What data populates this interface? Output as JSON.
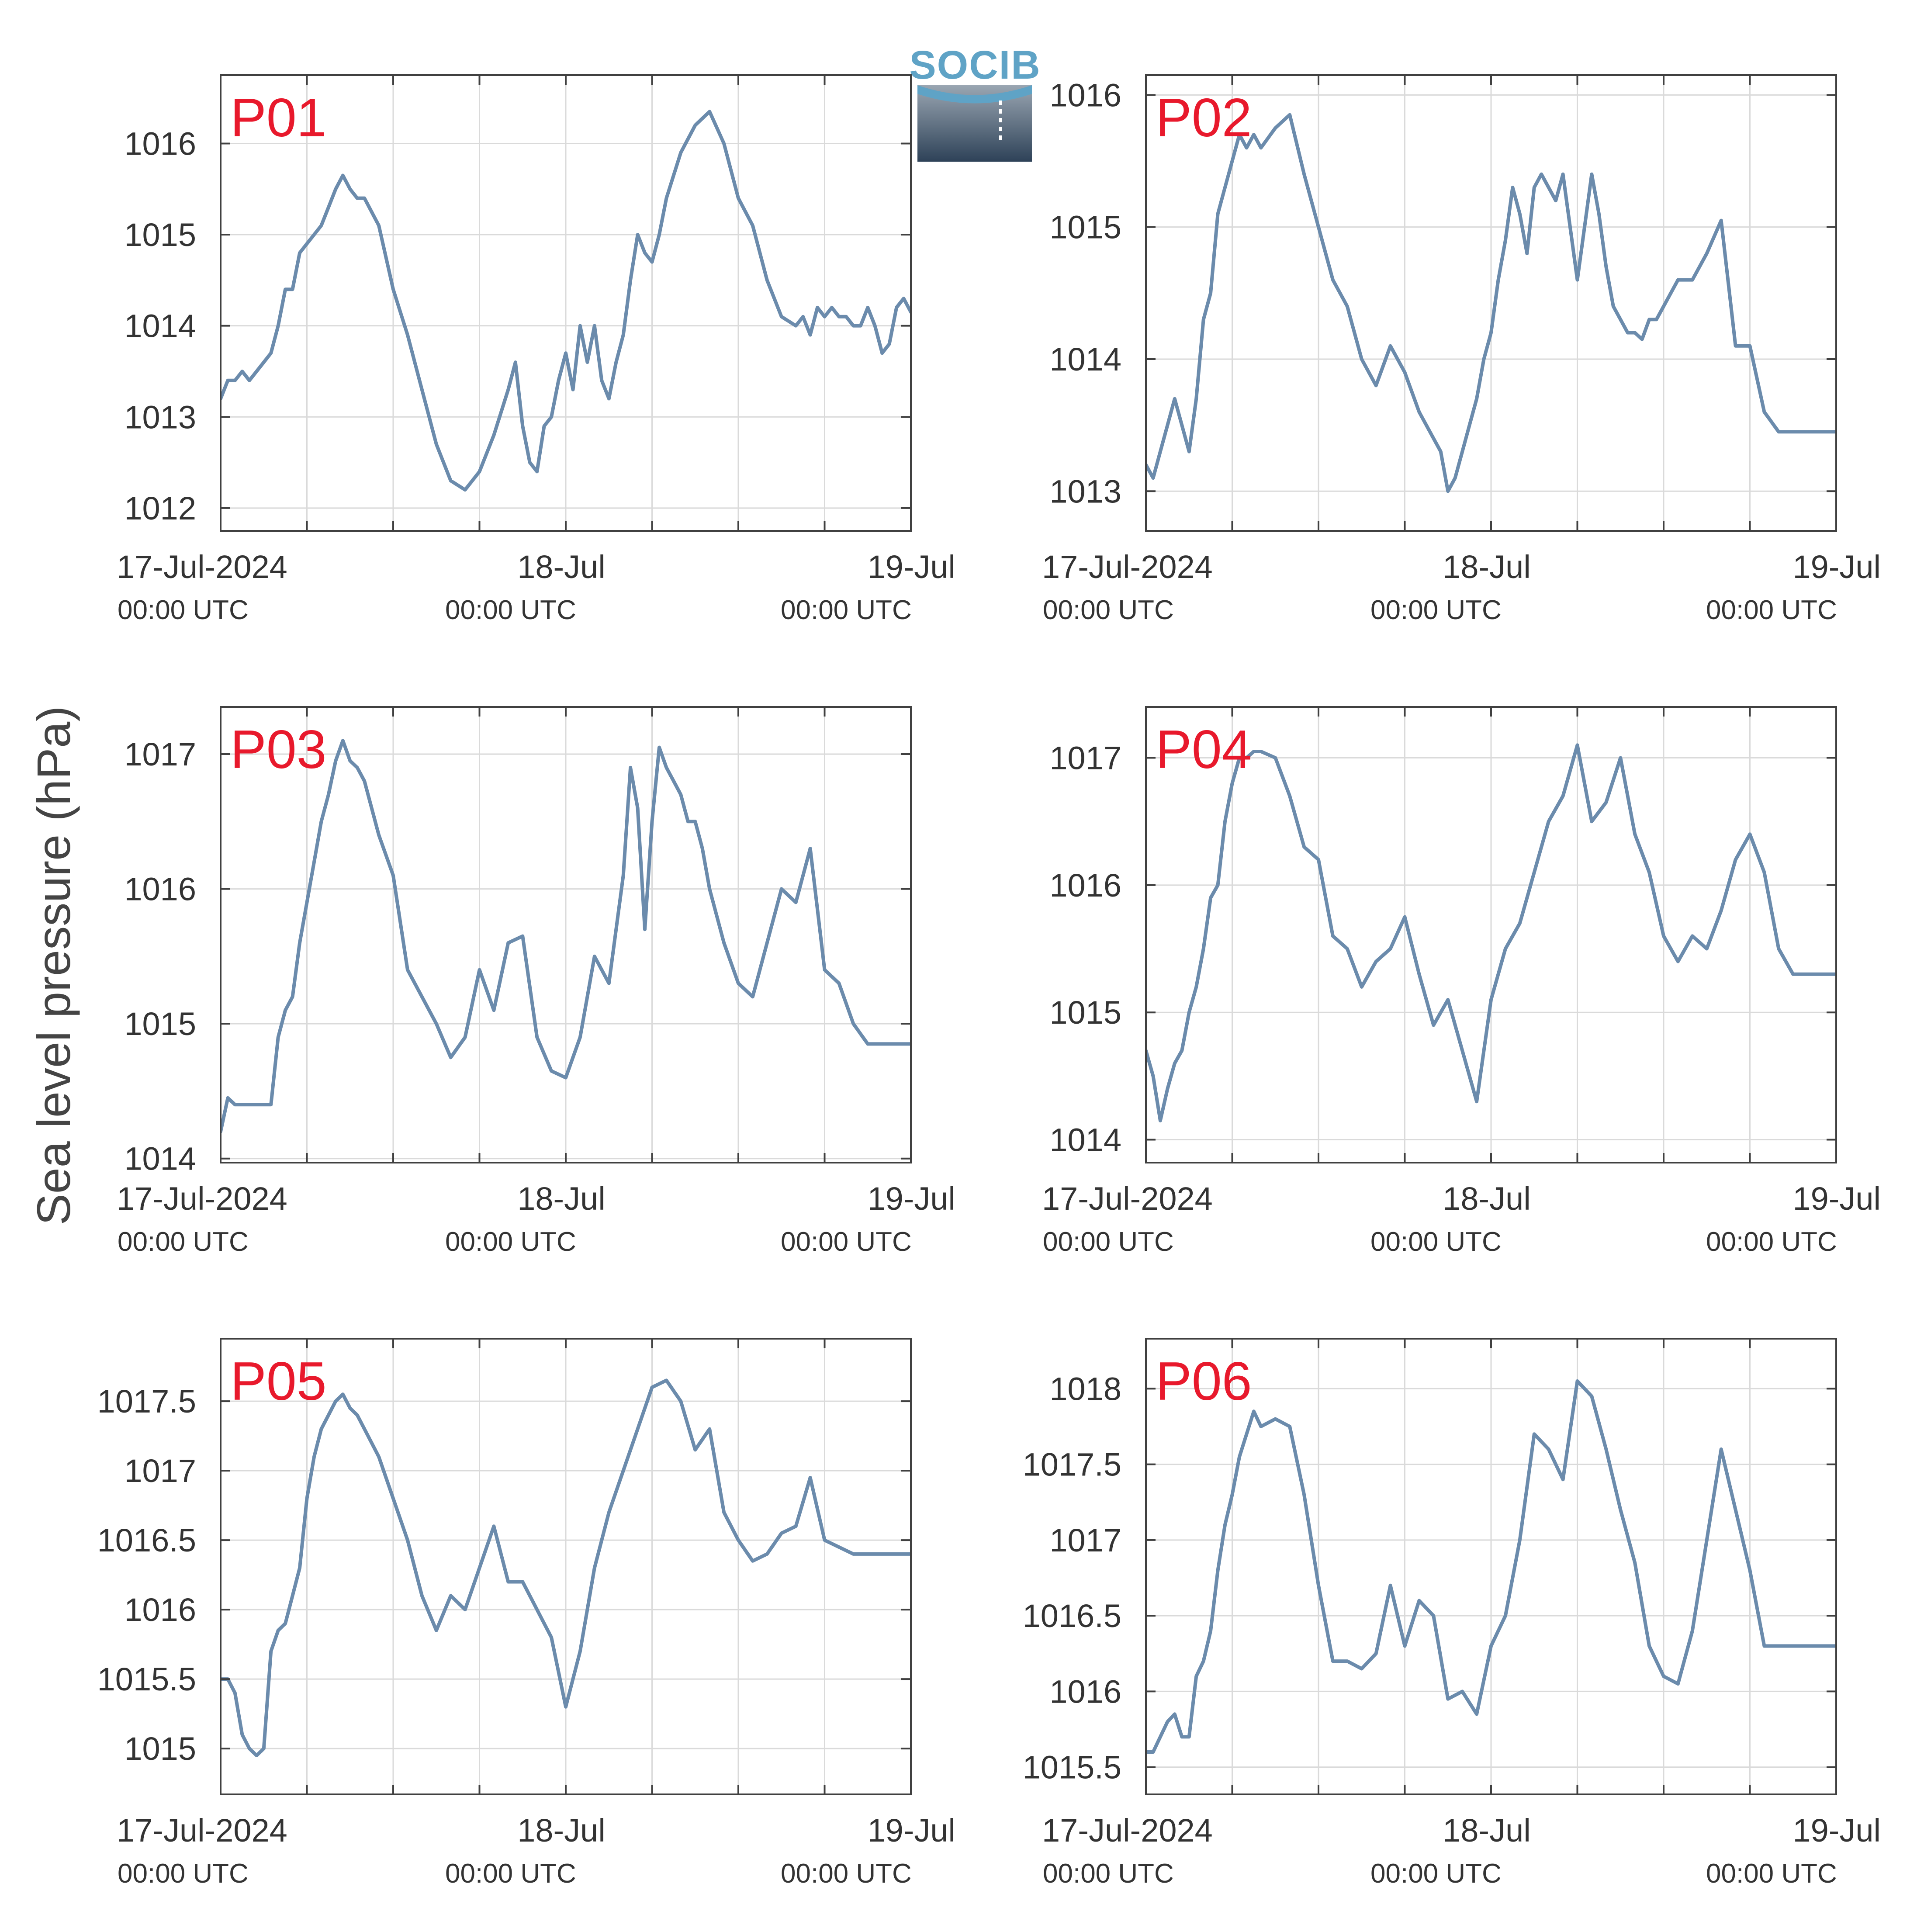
{
  "figure": {
    "ylabel": "Sea level pressure (hPa)",
    "logo_text": "SOCIB"
  },
  "style": {
    "line_color": "#6b8bac",
    "panel_label_color": "#e8192c",
    "grid_color": "#dadada",
    "axis_color": "#404040",
    "text_color": "#333333",
    "logo_top_color": "#5fa3c6",
    "logo_bottom_color": "#2e4258"
  },
  "x_axis": {
    "range_hours": [
      0,
      48
    ],
    "major_ticks": [
      {
        "hour": 0,
        "date": "17-Jul-2024",
        "time": "00:00 UTC"
      },
      {
        "hour": 24,
        "date": "18-Jul",
        "time": "00:00 UTC"
      },
      {
        "hour": 48,
        "date": "19-Jul",
        "time": "00:00 UTC"
      }
    ],
    "minor_tick_step_hours": 6
  },
  "chart_data": [
    {
      "type": "line",
      "label": "P01",
      "ylim": [
        1011.75,
        1016.75
      ],
      "yticks": [
        1012,
        1013,
        1014,
        1015,
        1016
      ],
      "ytick_labels": [
        "1012",
        "1013",
        "1014",
        "1015",
        "1016"
      ],
      "x": [
        0,
        0.5,
        1,
        1.5,
        2,
        2.5,
        3,
        3.5,
        4,
        4.5,
        5,
        5.5,
        6,
        6.5,
        7,
        7.5,
        8,
        8.5,
        9,
        9.5,
        10,
        11,
        12,
        13,
        14,
        15,
        16,
        17,
        18,
        19,
        20,
        20.5,
        21,
        21.5,
        22,
        22.5,
        23,
        23.5,
        24,
        24.5,
        25,
        25.5,
        26,
        26.5,
        27,
        27.5,
        28,
        28.5,
        29,
        29.5,
        30,
        30.5,
        31,
        32,
        33,
        34,
        35,
        36,
        37,
        38,
        39,
        40,
        40.5,
        41,
        41.5,
        42,
        42.5,
        43,
        43.5,
        44,
        44.5,
        45,
        45.5,
        46,
        46.5,
        47,
        47.5,
        48
      ],
      "y": [
        1013.2,
        1013.4,
        1013.4,
        1013.5,
        1013.4,
        1013.5,
        1013.6,
        1013.7,
        1014.0,
        1014.4,
        1014.4,
        1014.8,
        1014.9,
        1015.0,
        1015.1,
        1015.3,
        1015.5,
        1015.65,
        1015.5,
        1015.4,
        1015.4,
        1015.1,
        1014.4,
        1013.9,
        1013.3,
        1012.7,
        1012.3,
        1012.2,
        1012.4,
        1012.8,
        1013.3,
        1013.6,
        1012.9,
        1012.5,
        1012.4,
        1012.9,
        1013.0,
        1013.4,
        1013.7,
        1013.3,
        1014.0,
        1013.6,
        1014.0,
        1013.4,
        1013.2,
        1013.6,
        1013.9,
        1014.5,
        1015.0,
        1014.8,
        1014.7,
        1015.0,
        1015.4,
        1015.9,
        1016.2,
        1016.35,
        1016.0,
        1015.4,
        1015.1,
        1014.5,
        1014.1,
        1014.0,
        1014.1,
        1013.9,
        1014.2,
        1014.1,
        1014.2,
        1014.1,
        1014.1,
        1014.0,
        1014.0,
        1014.2,
        1014.0,
        1013.7,
        1013.8,
        1014.2,
        1014.3,
        1014.15
      ]
    },
    {
      "type": "line",
      "label": "P02",
      "ylim": [
        1012.7,
        1016.15
      ],
      "yticks": [
        1013,
        1014,
        1015,
        1016
      ],
      "ytick_labels": [
        "1013",
        "1014",
        "1015",
        "1016"
      ],
      "x": [
        0,
        0.5,
        1,
        1.5,
        2,
        2.5,
        3,
        3.5,
        4,
        4.5,
        5,
        5.5,
        6,
        6.5,
        7,
        7.5,
        8,
        9,
        10,
        11,
        12,
        13,
        14,
        15,
        16,
        17,
        18,
        19,
        20,
        20.5,
        21,
        21.5,
        22,
        22.5,
        23,
        23.5,
        24,
        24.5,
        25,
        25.5,
        26,
        26.5,
        27,
        27.5,
        28,
        28.5,
        29,
        29.5,
        30,
        30.5,
        31,
        31.5,
        32,
        32.5,
        33,
        33.5,
        34,
        34.5,
        35,
        35.5,
        36,
        37,
        38,
        39,
        40,
        41,
        42,
        43,
        44,
        45,
        45.5,
        46,
        46.5,
        47,
        47.5,
        48
      ],
      "y": [
        1013.2,
        1013.1,
        1013.3,
        1013.5,
        1013.7,
        1013.5,
        1013.3,
        1013.7,
        1014.3,
        1014.5,
        1015.1,
        1015.3,
        1015.5,
        1015.7,
        1015.6,
        1015.7,
        1015.6,
        1015.75,
        1015.85,
        1015.4,
        1015.0,
        1014.6,
        1014.4,
        1014.0,
        1013.8,
        1014.1,
        1013.9,
        1013.6,
        1013.4,
        1013.3,
        1013.0,
        1013.1,
        1013.3,
        1013.5,
        1013.7,
        1014.0,
        1014.2,
        1014.6,
        1014.9,
        1015.3,
        1015.1,
        1014.8,
        1015.3,
        1015.4,
        1015.3,
        1015.2,
        1015.4,
        1015.0,
        1014.6,
        1015.0,
        1015.4,
        1015.1,
        1014.7,
        1014.4,
        1014.3,
        1014.2,
        1014.2,
        1014.15,
        1014.3,
        1014.3,
        1014.4,
        1014.6,
        1014.6,
        1014.8,
        1015.05,
        1014.1,
        1014.1,
        1013.6,
        1013.45,
        1013.45,
        1013.45,
        1013.45,
        1013.45,
        1013.45,
        1013.45,
        1013.45
      ]
    },
    {
      "type": "line",
      "label": "P03",
      "ylim": [
        1013.97,
        1017.35
      ],
      "yticks": [
        1014,
        1015,
        1016,
        1017
      ],
      "ytick_labels": [
        "1014",
        "1015",
        "1016",
        "1017"
      ],
      "x": [
        0,
        0.5,
        1,
        1.5,
        2,
        2.5,
        3,
        3.5,
        4,
        4.5,
        5,
        5.5,
        6,
        6.5,
        7,
        7.5,
        8,
        8.5,
        9,
        9.5,
        10,
        11,
        12,
        13,
        14,
        15,
        16,
        17,
        18,
        19,
        20,
        21,
        22,
        23,
        24,
        25,
        26,
        27,
        28,
        28.5,
        29,
        29.5,
        30,
        30.5,
        31,
        31.5,
        32,
        32.5,
        33,
        33.5,
        34,
        35,
        36,
        37,
        38,
        39,
        40,
        41,
        42,
        43,
        44,
        45,
        45.5,
        46,
        46.5,
        47,
        47.5,
        48
      ],
      "y": [
        1014.2,
        1014.45,
        1014.4,
        1014.4,
        1014.4,
        1014.4,
        1014.4,
        1014.4,
        1014.9,
        1015.1,
        1015.2,
        1015.6,
        1015.9,
        1016.2,
        1016.5,
        1016.7,
        1016.95,
        1017.1,
        1016.95,
        1016.9,
        1016.8,
        1016.4,
        1016.1,
        1015.4,
        1015.2,
        1015.0,
        1014.75,
        1014.9,
        1015.4,
        1015.1,
        1015.6,
        1015.65,
        1014.9,
        1014.65,
        1014.6,
        1014.9,
        1015.5,
        1015.3,
        1016.1,
        1016.9,
        1016.6,
        1015.7,
        1016.5,
        1017.05,
        1016.9,
        1016.8,
        1016.7,
        1016.5,
        1016.5,
        1016.3,
        1016.0,
        1015.6,
        1015.3,
        1015.2,
        1015.6,
        1016.0,
        1015.9,
        1016.3,
        1015.4,
        1015.3,
        1015.0,
        1014.85,
        1014.85,
        1014.85,
        1014.85,
        1014.85,
        1014.85,
        1014.85
      ]
    },
    {
      "type": "line",
      "label": "P04",
      "ylim": [
        1013.82,
        1017.4
      ],
      "yticks": [
        1014,
        1015,
        1016,
        1017
      ],
      "ytick_labels": [
        "1014",
        "1015",
        "1016",
        "1017"
      ],
      "x": [
        0,
        0.5,
        1,
        1.5,
        2,
        2.5,
        3,
        3.5,
        4,
        4.5,
        5,
        5.5,
        6,
        6.5,
        7,
        7.5,
        8,
        9,
        10,
        11,
        12,
        13,
        14,
        15,
        16,
        17,
        18,
        19,
        20,
        21,
        22,
        23,
        24,
        25,
        26,
        27,
        28,
        29,
        30,
        31,
        32,
        33,
        34,
        35,
        36,
        37,
        38,
        39,
        40,
        41,
        42,
        43,
        44,
        45,
        45.5,
        46,
        46.5,
        47,
        47.5,
        48
      ],
      "y": [
        1014.7,
        1014.5,
        1014.15,
        1014.4,
        1014.6,
        1014.7,
        1015.0,
        1015.2,
        1015.5,
        1015.9,
        1016.0,
        1016.5,
        1016.8,
        1017.0,
        1017.0,
        1017.05,
        1017.05,
        1017.0,
        1016.7,
        1016.3,
        1016.2,
        1015.6,
        1015.5,
        1015.2,
        1015.4,
        1015.5,
        1015.75,
        1015.3,
        1014.9,
        1015.1,
        1014.7,
        1014.3,
        1015.1,
        1015.5,
        1015.7,
        1016.1,
        1016.5,
        1016.7,
        1017.1,
        1016.5,
        1016.65,
        1017.0,
        1016.4,
        1016.1,
        1015.6,
        1015.4,
        1015.6,
        1015.5,
        1015.8,
        1016.2,
        1016.4,
        1016.1,
        1015.5,
        1015.3,
        1015.3,
        1015.3,
        1015.3,
        1015.3,
        1015.3,
        1015.3
      ]
    },
    {
      "type": "line",
      "label": "P05",
      "ylim": [
        1014.67,
        1017.95
      ],
      "yticks": [
        1015,
        1015.5,
        1016,
        1016.5,
        1017,
        1017.5
      ],
      "ytick_labels": [
        "1015",
        "1015.5",
        "1016",
        "1016.5",
        "1017",
        "1017.5"
      ],
      "x": [
        0,
        0.5,
        1,
        1.5,
        2,
        2.5,
        3,
        3.5,
        4,
        4.5,
        5,
        5.5,
        6,
        6.5,
        7,
        7.5,
        8,
        8.5,
        9,
        9.5,
        10,
        11,
        12,
        13,
        14,
        15,
        16,
        17,
        18,
        19,
        20,
        21,
        22,
        23,
        24,
        25,
        26,
        27,
        28,
        29,
        30,
        31,
        32,
        33,
        34,
        35,
        36,
        37,
        38,
        39,
        40,
        41,
        42,
        43,
        44,
        45,
        45.5,
        46,
        46.5,
        47,
        47.5,
        48
      ],
      "y": [
        1015.5,
        1015.5,
        1015.4,
        1015.1,
        1015.0,
        1014.95,
        1015.0,
        1015.7,
        1015.85,
        1015.9,
        1016.1,
        1016.3,
        1016.8,
        1017.1,
        1017.3,
        1017.4,
        1017.5,
        1017.55,
        1017.45,
        1017.4,
        1017.3,
        1017.1,
        1016.8,
        1016.5,
        1016.1,
        1015.85,
        1016.1,
        1016.0,
        1016.3,
        1016.6,
        1016.2,
        1016.2,
        1016.0,
        1015.8,
        1015.3,
        1015.7,
        1016.3,
        1016.7,
        1017.0,
        1017.3,
        1017.6,
        1017.65,
        1017.5,
        1017.15,
        1017.3,
        1016.7,
        1016.5,
        1016.35,
        1016.4,
        1016.55,
        1016.6,
        1016.95,
        1016.5,
        1016.45,
        1016.4,
        1016.4,
        1016.4,
        1016.4,
        1016.4,
        1016.4,
        1016.4,
        1016.4
      ]
    },
    {
      "type": "line",
      "label": "P06",
      "ylim": [
        1015.32,
        1018.33
      ],
      "yticks": [
        1015.5,
        1016,
        1016.5,
        1017,
        1017.5,
        1018
      ],
      "ytick_labels": [
        "1015.5",
        "1016",
        "1016.5",
        "1017",
        "1017.5",
        "1018"
      ],
      "x": [
        0,
        0.5,
        1,
        1.5,
        2,
        2.5,
        3,
        3.5,
        4,
        4.5,
        5,
        5.5,
        6,
        6.5,
        7,
        7.5,
        8,
        9,
        10,
        11,
        12,
        13,
        14,
        15,
        16,
        17,
        18,
        19,
        20,
        21,
        22,
        23,
        24,
        25,
        26,
        27,
        28,
        29,
        30,
        31,
        32,
        33,
        34,
        35,
        36,
        37,
        38,
        39,
        40,
        41,
        42,
        43,
        44,
        45,
        45.5,
        46,
        46.5,
        47,
        47.5,
        48
      ],
      "y": [
        1015.6,
        1015.6,
        1015.7,
        1015.8,
        1015.85,
        1015.7,
        1015.7,
        1016.1,
        1016.2,
        1016.4,
        1016.8,
        1017.1,
        1017.3,
        1017.55,
        1017.7,
        1017.85,
        1017.75,
        1017.8,
        1017.75,
        1017.3,
        1016.7,
        1016.2,
        1016.2,
        1016.15,
        1016.25,
        1016.7,
        1016.3,
        1016.6,
        1016.5,
        1015.95,
        1016.0,
        1015.85,
        1016.3,
        1016.5,
        1017.0,
        1017.7,
        1017.6,
        1017.4,
        1018.05,
        1017.95,
        1017.6,
        1017.2,
        1016.85,
        1016.3,
        1016.1,
        1016.05,
        1016.4,
        1017.0,
        1017.6,
        1017.2,
        1016.8,
        1016.3,
        1016.3,
        1016.3,
        1016.3,
        1016.3,
        1016.3,
        1016.3,
        1016.3,
        1016.3
      ]
    }
  ]
}
